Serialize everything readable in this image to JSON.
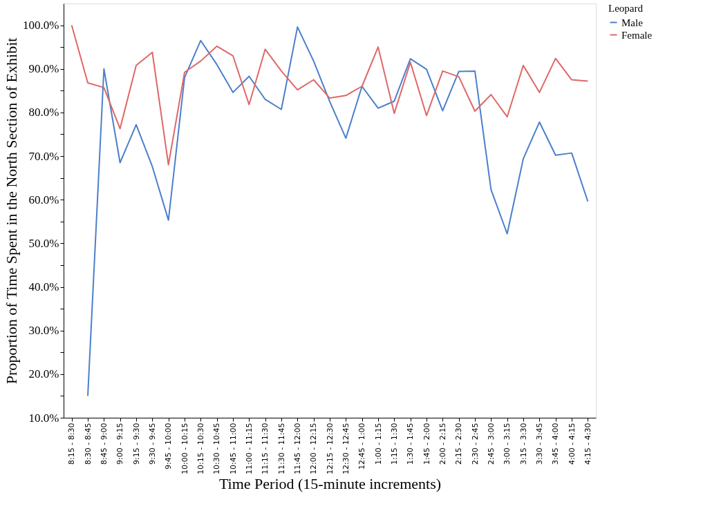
{
  "chart_data": {
    "type": "line",
    "xlabel": "Time Period (15-minute increments)",
    "ylabel": "Proportion of Time Spent in the North Section of Exhibit",
    "legend_title": "Leopard",
    "legend": "top right",
    "grid": false,
    "marker": "none",
    "line_style": "solid",
    "categories": [
      "8:15 - 8:30",
      "8:30 - 8:45",
      "8:45 - 9:00",
      "9:00 - 9:15",
      "9:15 - 9:30",
      "9:30 - 9:45",
      "9:45 - 10:00",
      "10:00 - 10:15",
      "10:15 - 10:30",
      "10:30 - 10:45",
      "10:45 - 11:00",
      "11:00 - 11:15",
      "11:15 - 11:30",
      "11:30 - 11:45",
      "11:45 - 12:00",
      "12:00 - 12:15",
      "12:15 - 12:30",
      "12:30 - 12:45",
      "12:45 - 1:00",
      "1:00 - 1:15",
      "1:15 - 1:30",
      "1:30 - 1:45",
      "1:45 - 2:00",
      "2:00 - 2:15",
      "2:15 - 2:30",
      "2:30 - 2:45",
      "2:45 - 3:00",
      "3:00 - 3:15",
      "3:15 - 3:30",
      "3:30 - 3:45",
      "3:45 - 4:00",
      "4:00 - 4:15",
      "4:15 - 4:30"
    ],
    "ylim": [
      10,
      105
    ],
    "yticks": [
      {
        "value": 10,
        "label": "10.0%"
      },
      {
        "value": 15,
        "label": null
      },
      {
        "value": 20,
        "label": "20.0%"
      },
      {
        "value": 25,
        "label": null
      },
      {
        "value": 30,
        "label": "30.0%"
      },
      {
        "value": 35,
        "label": null
      },
      {
        "value": 40,
        "label": "40.0%"
      },
      {
        "value": 45,
        "label": null
      },
      {
        "value": 50,
        "label": "50.0%"
      },
      {
        "value": 55,
        "label": null
      },
      {
        "value": 60,
        "label": "60.0%"
      },
      {
        "value": 65,
        "label": null
      },
      {
        "value": 70,
        "label": "70.0%"
      },
      {
        "value": 75,
        "label": null
      },
      {
        "value": 80,
        "label": "80.0%"
      },
      {
        "value": 85,
        "label": null
      },
      {
        "value": 90,
        "label": "90.0%"
      },
      {
        "value": 95,
        "label": null
      },
      {
        "value": 100,
        "label": "100.0%"
      }
    ],
    "series": [
      {
        "name": "Male",
        "color": "#4a7fcc",
        "values": [
          null,
          15,
          90,
          68.5,
          77.2,
          67.6,
          55.3,
          88,
          96.5,
          91,
          84.6,
          88.3,
          83,
          80.7,
          99.6,
          91.8,
          82.5,
          74.1,
          86,
          81,
          82.6,
          92.3,
          89.9,
          80.4,
          89.4,
          89.5,
          62.3,
          52.2,
          69.4,
          77.8,
          70.2,
          70.7,
          59.6
        ]
      },
      {
        "name": "Female",
        "color": "#e06666",
        "values": [
          100,
          86.8,
          85.7,
          76.3,
          90.8,
          93.8,
          68,
          89.2,
          91.8,
          95.2,
          93,
          81.8,
          94.5,
          89.5,
          85.2,
          87.5,
          83.3,
          83.9,
          86,
          95,
          79.8,
          91.5,
          79.3,
          89.5,
          88.2,
          80.3,
          84.1,
          79,
          90.8,
          84.6,
          92.4,
          87.5,
          87.2
        ]
      }
    ]
  }
}
